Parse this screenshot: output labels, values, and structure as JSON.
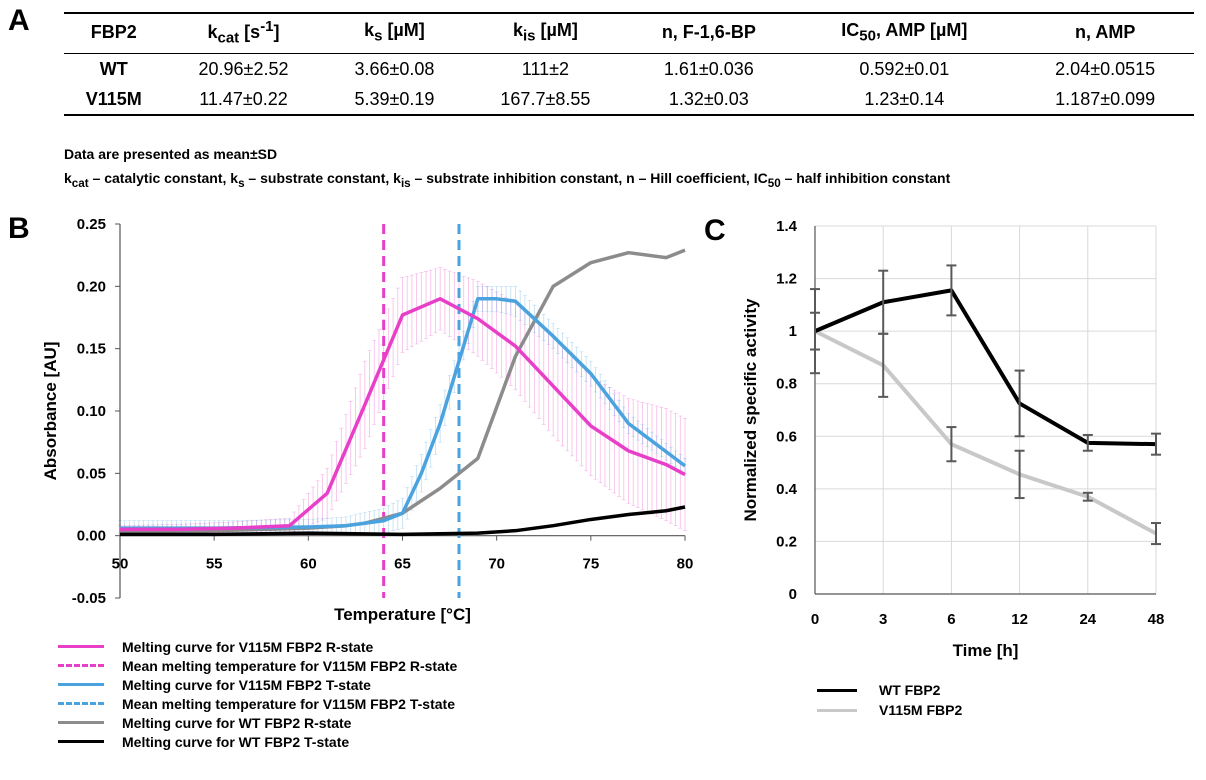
{
  "panel_a": {
    "letter": "A",
    "table": {
      "headers": [
        {
          "main": "FBP2",
          "sub": "",
          "sup": "",
          "rest": ""
        },
        {
          "main": "k",
          "sub": "cat",
          "sup": "",
          "rest": " [s",
          "sup2": "-1",
          "rest2": "]"
        },
        {
          "main": "k",
          "sub": "s",
          "rest": " [µM]"
        },
        {
          "main": "k",
          "sub": "is",
          "rest": " [µM]"
        },
        {
          "main": "n, F-1,6-BP",
          "sub": "",
          "rest": ""
        },
        {
          "main": "IC",
          "sub": "50",
          "rest": ", AMP [µM]"
        },
        {
          "main": "n, AMP",
          "sub": "",
          "rest": ""
        }
      ],
      "rows": [
        [
          "WT",
          "20.96±2.52",
          "3.66±0.08",
          "111±2",
          "1.61±0.036",
          "0.592±0.01",
          "2.04±0.0515"
        ],
        [
          "V115M",
          "11.47±0.22",
          "5.39±0.19",
          "167.7±8.55",
          "1.32±0.03",
          "1.23±0.14",
          "1.187±0.099"
        ]
      ]
    },
    "note1": "Data are presented as mean±SD",
    "note2": {
      "k": "k",
      "cat": "cat",
      "t1": " – catalytic constant, ",
      "s": "s",
      "t2": " – substrate constant, ",
      "is": "is",
      "t3": " – substrate inhibition constant, n – Hill coefficient, IC",
      "fifty": "50",
      "t4": " – half inhibition constant"
    }
  },
  "chart_data": [
    {
      "type": "line",
      "letter": "B",
      "xlabel": "Temperature [°C]",
      "ylabel": "Absorbance [AU]",
      "xlim": [
        50,
        80
      ],
      "ylim": [
        -0.05,
        0.25
      ],
      "xticks": [
        "50",
        "55",
        "60",
        "65",
        "70",
        "75",
        "80"
      ],
      "yticks": [
        "-0.05",
        "0.00",
        "0.05",
        "0.10",
        "0.15",
        "0.20",
        "0.25"
      ],
      "grid": false,
      "legend_position": "bottom",
      "series": [
        {
          "name": "Melting curve for V115M FBP2 R-state",
          "color": "#e83fc8",
          "style": "solid",
          "x": [
            50,
            53,
            56,
            59,
            61,
            63,
            65,
            67,
            69,
            71,
            73,
            75,
            77,
            79,
            80
          ],
          "y": [
            0.005,
            0.005,
            0.006,
            0.008,
            0.034,
            0.105,
            0.177,
            0.19,
            0.174,
            0.152,
            0.12,
            0.088,
            0.068,
            0.057,
            0.049
          ],
          "error": [
            0.003,
            0.004,
            0.005,
            0.006,
            0.02,
            0.035,
            0.03,
            0.025,
            0.03,
            0.035,
            0.04,
            0.04,
            0.042,
            0.045,
            0.045
          ]
        },
        {
          "name": "Mean melting temperature for V115M FBP2 R-state",
          "color": "#e83fc8",
          "style": "dashed",
          "x_value": 64
        },
        {
          "name": "Melting curve for V115M FBP2 T-state",
          "color": "#4aa3de",
          "style": "solid",
          "x": [
            50,
            55,
            60,
            62,
            64,
            65,
            66,
            67,
            68,
            69,
            70,
            71,
            73,
            75,
            77,
            80
          ],
          "y": [
            0.006,
            0.006,
            0.007,
            0.008,
            0.012,
            0.018,
            0.05,
            0.09,
            0.14,
            0.19,
            0.19,
            0.188,
            0.16,
            0.13,
            0.09,
            0.056
          ],
          "error": [
            0.006,
            0.006,
            0.006,
            0.007,
            0.01,
            0.012,
            0.015,
            0.015,
            0.012,
            0.01,
            0.01,
            0.012,
            0.01,
            0.01,
            0.008,
            0.006
          ]
        },
        {
          "name": "Mean melting temperature for V115M FBP2 T-state",
          "color": "#4aa3de",
          "style": "dashed",
          "x_value": 68
        },
        {
          "name": "Melting curve for WT FBP2 R-state",
          "color": "#8c8c8c",
          "style": "solid",
          "x": [
            50,
            55,
            60,
            62,
            63,
            65,
            67,
            68,
            69,
            71,
            73,
            75,
            77,
            79,
            80
          ],
          "y": [
            0.003,
            0.004,
            0.006,
            0.008,
            0.01,
            0.018,
            0.038,
            0.05,
            0.062,
            0.144,
            0.2,
            0.219,
            0.227,
            0.223,
            0.229
          ]
        },
        {
          "name": "Melting curve for WT FBP2 T-state",
          "color": "#000000",
          "style": "solid",
          "x": [
            50,
            55,
            60,
            65,
            69,
            71,
            73,
            75,
            77,
            79,
            80
          ],
          "y": [
            0.001,
            0.001,
            0.002,
            0.001,
            0.002,
            0.004,
            0.008,
            0.013,
            0.017,
            0.02,
            0.023
          ]
        }
      ]
    },
    {
      "type": "line",
      "letter": "C",
      "xlabel": "Time [h]",
      "ylabel": "Normalized specific activity",
      "categories": [
        "0",
        "3",
        "6",
        "12",
        "24",
        "48"
      ],
      "ylim": [
        0,
        1.4
      ],
      "yticks": [
        "0",
        "0.2",
        "0.4",
        "0.6",
        "0.8",
        "1",
        "1.2",
        "1.4"
      ],
      "grid": true,
      "legend_position": "bottom",
      "series": [
        {
          "name": "WT FBP2",
          "color": "#000000",
          "values": [
            1.0,
            1.11,
            1.155,
            0.725,
            0.575,
            0.57
          ],
          "error": [
            0.16,
            0.12,
            0.095,
            0.125,
            0.03,
            0.04
          ]
        },
        {
          "name": "V115M FBP2",
          "color": "#c8c8c8",
          "values": [
            1.0,
            0.87,
            0.57,
            0.455,
            0.37,
            0.23
          ],
          "error": [
            0.07,
            0.12,
            0.065,
            0.09,
            0.015,
            0.04
          ]
        }
      ]
    }
  ]
}
